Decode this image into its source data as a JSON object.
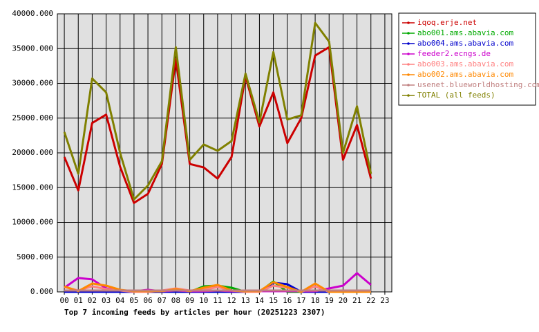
{
  "chart_data": {
    "type": "line",
    "title": "Top 7 incoming feeds by articles per hour (20251223 2307)",
    "categories": [
      "00",
      "01",
      "02",
      "03",
      "04",
      "05",
      "06",
      "07",
      "08",
      "09",
      "10",
      "11",
      "12",
      "13",
      "14",
      "15",
      "16",
      "17",
      "18",
      "19",
      "20",
      "21",
      "22",
      "23"
    ],
    "ylim": [
      0,
      40000
    ],
    "yticks": [
      {
        "value": 0,
        "label": "0.000"
      },
      {
        "value": 5000,
        "label": "5000.000"
      },
      {
        "value": 10000,
        "label": "10000.000"
      },
      {
        "value": 15000,
        "label": "15000.000"
      },
      {
        "value": 20000,
        "label": "20000.000"
      },
      {
        "value": 25000,
        "label": "25000.000"
      },
      {
        "value": 30000,
        "label": "30000.000"
      },
      {
        "value": 35000,
        "label": "35000.000"
      },
      {
        "value": 40000,
        "label": "40000.000"
      }
    ],
    "grid": true,
    "legend": "right",
    "series": [
      {
        "name": "iqoq.erje.net",
        "color": "#cc0000",
        "values": [
          19400,
          14600,
          24300,
          25500,
          18000,
          12800,
          14100,
          18400,
          33500,
          18400,
          17900,
          16300,
          19400,
          31000,
          23800,
          28700,
          21400,
          25000,
          34000,
          35200,
          19000,
          24000,
          16300,
          null
        ]
      },
      {
        "name": "abo001.ams.abavia.com",
        "color": "#00aa00",
        "values": [
          0,
          0,
          0,
          0,
          0,
          0,
          0,
          0,
          0,
          0,
          800,
          900,
          600,
          0,
          0,
          1500,
          0,
          0,
          0,
          0,
          0,
          0,
          0,
          null
        ]
      },
      {
        "name": "abo004.ams.abavia.com",
        "color": "#0000cc",
        "values": [
          0,
          0,
          0,
          0,
          0,
          0,
          0,
          0,
          0,
          0,
          0,
          0,
          0,
          0,
          0,
          1300,
          1100,
          0,
          0,
          0,
          0,
          0,
          0,
          null
        ]
      },
      {
        "name": "feeder2.ecngs.de",
        "color": "#cc00cc",
        "values": [
          600,
          2000,
          1800,
          500,
          200,
          100,
          300,
          100,
          200,
          100,
          100,
          200,
          100,
          100,
          100,
          100,
          100,
          100,
          100,
          500,
          900,
          2700,
          1000,
          null
        ]
      },
      {
        "name": "abo003.ams.abavia.com",
        "color": "#ff8080",
        "values": [
          700,
          200,
          800,
          400,
          200,
          0,
          0,
          200,
          500,
          200,
          300,
          700,
          200,
          0,
          0,
          900,
          600,
          0,
          800,
          0,
          0,
          0,
          0,
          null
        ]
      },
      {
        "name": "abo002.ams.abavia.com",
        "color": "#ff8800",
        "values": [
          800,
          100,
          1200,
          900,
          300,
          100,
          100,
          100,
          400,
          100,
          600,
          1000,
          200,
          100,
          100,
          1400,
          700,
          0,
          1200,
          0,
          0,
          0,
          0,
          null
        ]
      },
      {
        "name": "usenet.blueworldhosting.com",
        "color": "#c08080",
        "values": [
          200,
          200,
          200,
          200,
          200,
          200,
          200,
          200,
          200,
          200,
          200,
          200,
          200,
          200,
          200,
          200,
          200,
          200,
          200,
          200,
          200,
          200,
          200,
          null
        ]
      },
      {
        "name": "TOTAL (all feeds)",
        "color": "#808000",
        "values": [
          23000,
          17000,
          30700,
          28700,
          20000,
          13300,
          15300,
          18800,
          35200,
          19000,
          21200,
          20300,
          21700,
          31400,
          24400,
          34500,
          24800,
          25400,
          38700,
          36000,
          20000,
          26700,
          17000,
          null
        ]
      }
    ]
  }
}
